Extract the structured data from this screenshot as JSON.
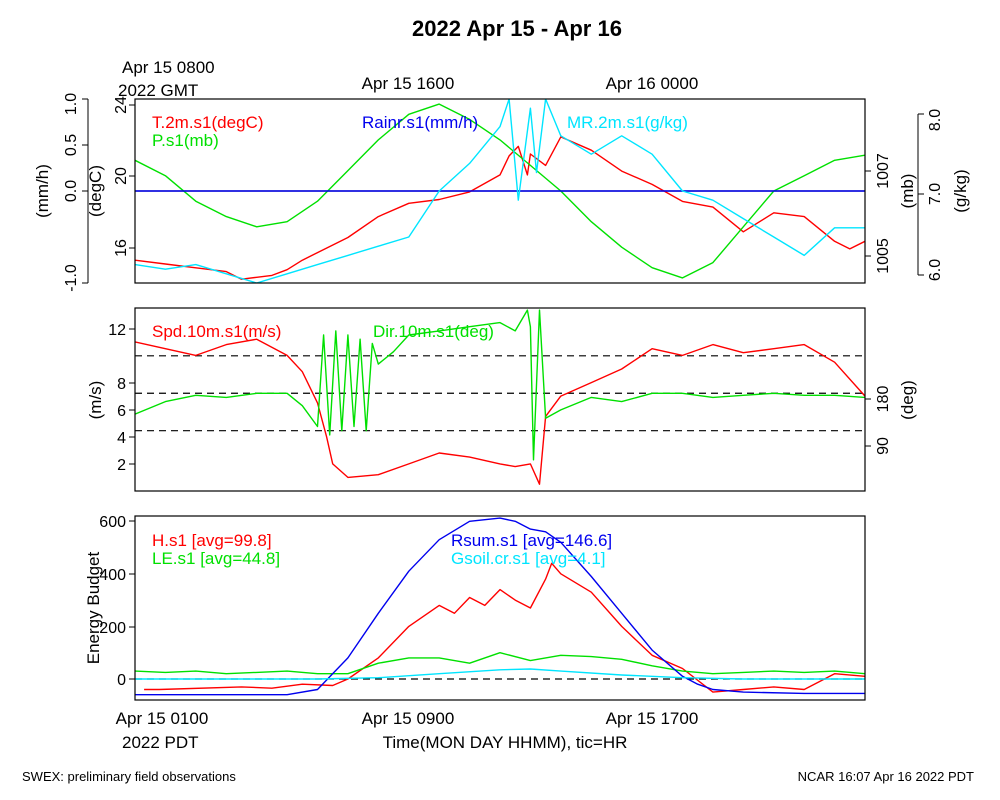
{
  "title": "2022 Apr 15 - Apr 16",
  "top_axis": {
    "labels": [
      "Apr 15 0800",
      "Apr 15 1600",
      "Apr 16 0000"
    ],
    "sub_label": "2022 GMT"
  },
  "bottom_axis": {
    "labels": [
      "Apr 15 0100",
      "Apr 15 0900",
      "Apr 15 1700"
    ],
    "sub_label": "2022 PDT",
    "title": "Time(MON DAY HHMM), tic=HR"
  },
  "footer": {
    "left": "SWEX: preliminary field observations",
    "right": "NCAR 16:07 Apr 16 2022 PDT"
  },
  "colors": {
    "red": "#ff0000",
    "green": "#00e000",
    "blue": "#0000ee",
    "cyan": "#00e5ff"
  },
  "chart_data": [
    {
      "type": "line",
      "panel": "thermo",
      "xlim": [
        0,
        24
      ],
      "y_axes": {
        "rain": {
          "label": "(mm/h)",
          "ticks": [
            "1.0",
            "0.5",
            "0.0",
            "-1.0"
          ],
          "ylim": [
            -1.0,
            1.0
          ]
        },
        "temp": {
          "label": "(degC)",
          "ticks": [
            "24",
            "20",
            "16"
          ],
          "ylim": [
            14.8,
            24.5
          ]
        },
        "pres": {
          "label": "(mb)",
          "ticks": [
            "1007",
            "1005"
          ],
          "ylim": [
            1004.7,
            1008.3
          ]
        },
        "mr": {
          "label": "(g/kg)",
          "ticks": [
            "8.0",
            "7.0",
            "6.0"
          ],
          "ylim": [
            6.0,
            8.0
          ]
        }
      },
      "series": [
        {
          "name": "T.2m.s1(degC)",
          "color": "red",
          "axis": "temp",
          "x": [
            0,
            1,
            2,
            3,
            3.5,
            4,
            4.5,
            5,
            5.5,
            6,
            7,
            8,
            9,
            10,
            11,
            12,
            12.3,
            12.6,
            12.9,
            13,
            13.5,
            14,
            15,
            16,
            17,
            18,
            19,
            20,
            21,
            22,
            23,
            23.5,
            24
          ],
          "values": [
            16.0,
            15.8,
            15.6,
            15.4,
            15.0,
            15.1,
            15.2,
            15.5,
            16.0,
            16.4,
            17.2,
            18.3,
            19.0,
            19.2,
            19.6,
            20.5,
            21.5,
            22.0,
            20.5,
            21.6,
            21.0,
            22.5,
            21.8,
            20.7,
            20.0,
            19.1,
            18.8,
            17.5,
            18.5,
            18.3,
            17.0,
            16.6,
            17.0
          ]
        },
        {
          "name": "P.s1(mb)",
          "color": "green",
          "axis": "pres",
          "x": [
            0,
            1,
            2,
            3,
            4,
            5,
            6,
            7,
            8,
            9,
            10,
            11,
            12,
            13,
            14,
            15,
            16,
            17,
            18,
            19,
            20,
            21,
            22,
            23,
            24
          ],
          "values": [
            1007.1,
            1006.8,
            1006.3,
            1006.0,
            1005.8,
            1005.9,
            1006.3,
            1006.9,
            1007.5,
            1008.0,
            1008.2,
            1007.9,
            1007.5,
            1007.0,
            1006.5,
            1005.9,
            1005.4,
            1005.0,
            1004.8,
            1005.1,
            1005.8,
            1006.5,
            1006.8,
            1007.1,
            1007.2
          ]
        },
        {
          "name": "Rainr.s1(mm/h)",
          "color": "blue",
          "axis": "rain",
          "x": [
            0,
            24
          ],
          "values": [
            0.0,
            0.0
          ]
        },
        {
          "name": "MR.2m.s1(g/kg)",
          "color": "cyan",
          "axis": "mr",
          "x": [
            0,
            1,
            2,
            3,
            4,
            5,
            6,
            7,
            8,
            9,
            10,
            11,
            12,
            12.3,
            12.6,
            13,
            13.2,
            13.5,
            14,
            15,
            16,
            17,
            18,
            19,
            20,
            21,
            22,
            23,
            24
          ],
          "values": [
            6.2,
            6.15,
            6.2,
            6.1,
            6.0,
            6.1,
            6.2,
            6.3,
            6.4,
            6.5,
            7.0,
            7.3,
            7.7,
            8.0,
            6.9,
            7.9,
            7.2,
            8.0,
            7.6,
            7.4,
            7.6,
            7.4,
            7.0,
            6.9,
            6.7,
            6.5,
            6.3,
            6.6,
            6.6
          ]
        }
      ]
    },
    {
      "type": "line",
      "panel": "wind",
      "xlim": [
        0,
        24
      ],
      "y_axes": {
        "spd": {
          "label": "(m/s)",
          "ticks": [
            "12",
            "8",
            "6",
            "4",
            "2"
          ],
          "ylim": [
            0,
            13.5
          ]
        },
        "dir": {
          "label": "(deg)",
          "ticks": [
            "180",
            "90"
          ],
          "ylim": [
            -55,
            385
          ]
        }
      },
      "reference_lines_deg": [
        90,
        180,
        270
      ],
      "series": [
        {
          "name": "Spd.10m.s1(m/s)",
          "color": "red",
          "axis": "spd",
          "x": [
            0,
            1,
            2,
            3,
            4,
            5,
            5.5,
            6,
            6.3,
            6.5,
            7,
            8,
            9,
            10,
            11,
            12,
            12.5,
            13,
            13.3,
            13.5,
            14,
            15,
            16,
            17,
            18,
            19,
            20,
            21,
            22,
            23,
            24
          ],
          "values": [
            11.0,
            10.5,
            10.0,
            10.8,
            11.2,
            10.0,
            8.8,
            6.5,
            4.0,
            2.0,
            1.0,
            1.2,
            2.0,
            2.8,
            2.5,
            2.0,
            1.8,
            2.0,
            0.5,
            5.5,
            7.0,
            8.0,
            9.0,
            10.5,
            10.0,
            10.8,
            10.2,
            10.5,
            10.8,
            9.5,
            7.0
          ]
        },
        {
          "name": "Dir.10m.s1(deg)",
          "color": "green",
          "axis": "dir",
          "x": [
            0,
            1,
            2,
            3,
            4,
            5,
            5.5,
            6,
            6.2,
            6.4,
            6.6,
            6.8,
            7,
            7.2,
            7.4,
            7.6,
            7.8,
            8,
            8.5,
            9,
            10,
            11,
            12,
            12.5,
            12.9,
            13,
            13.1,
            13.3,
            13.5,
            14,
            15,
            16,
            17,
            18,
            19,
            20,
            21,
            22,
            23,
            24
          ],
          "values": [
            130,
            160,
            175,
            170,
            180,
            180,
            150,
            100,
            320,
            80,
            330,
            90,
            320,
            100,
            310,
            90,
            300,
            250,
            280,
            320,
            330,
            340,
            350,
            330,
            380,
            340,
            20,
            380,
            120,
            140,
            170,
            160,
            180,
            180,
            170,
            175,
            180,
            175,
            175,
            170
          ]
        }
      ]
    },
    {
      "type": "line",
      "panel": "energy",
      "xlim": [
        0,
        24
      ],
      "ylabel": "Energy Budget",
      "y_ticks": [
        "600",
        "400",
        "200",
        "0"
      ],
      "ylim": [
        -80,
        620
      ],
      "zero_line": true,
      "series": [
        {
          "name": "H.s1 [avg=99.8]",
          "color": "red",
          "x": [
            0.3,
            0.8,
            3.5,
            4.5,
            5.5,
            6.5,
            7,
            8,
            9,
            10,
            10.5,
            11,
            11.5,
            12,
            12.5,
            13,
            13.5,
            13.7,
            14,
            15,
            16,
            17,
            18,
            19,
            20,
            21,
            22,
            23,
            24
          ],
          "values": [
            -40,
            -40,
            -30,
            -35,
            -20,
            -25,
            0,
            80,
            200,
            280,
            250,
            310,
            280,
            340,
            300,
            270,
            380,
            440,
            400,
            330,
            200,
            90,
            40,
            -50,
            -40,
            -30,
            -40,
            20,
            10
          ]
        },
        {
          "name": "LE.s1 [avg=44.8]",
          "color": "green",
          "x": [
            0,
            1,
            2,
            3,
            4,
            5,
            6,
            7,
            8,
            9,
            10,
            11,
            12,
            13,
            14,
            15,
            16,
            17,
            18,
            19,
            20,
            21,
            22,
            23,
            24
          ],
          "values": [
            30,
            25,
            30,
            20,
            25,
            30,
            20,
            20,
            60,
            80,
            80,
            60,
            100,
            70,
            90,
            85,
            75,
            50,
            30,
            20,
            25,
            30,
            25,
            30,
            20
          ]
        },
        {
          "name": "Rsum.s1 [avg=146.6]",
          "color": "blue",
          "x": [
            0,
            5,
            6,
            7,
            8,
            9,
            10,
            11,
            12,
            12.5,
            13,
            13.5,
            14,
            15,
            16,
            17,
            18,
            18.5,
            19,
            20,
            22,
            24
          ],
          "values": [
            -60,
            -60,
            -40,
            80,
            250,
            410,
            530,
            600,
            612,
            600,
            570,
            560,
            520,
            390,
            250,
            110,
            10,
            -20,
            -40,
            -50,
            -55,
            -55
          ]
        },
        {
          "name": "Gsoil.cr.s1 [avg=4.1]",
          "color": "cyan",
          "x": [
            0,
            6,
            8,
            10,
            12,
            13,
            14,
            16,
            18,
            20,
            24
          ],
          "values": [
            0,
            0,
            5,
            20,
            35,
            38,
            30,
            15,
            5,
            0,
            0
          ]
        }
      ]
    }
  ]
}
